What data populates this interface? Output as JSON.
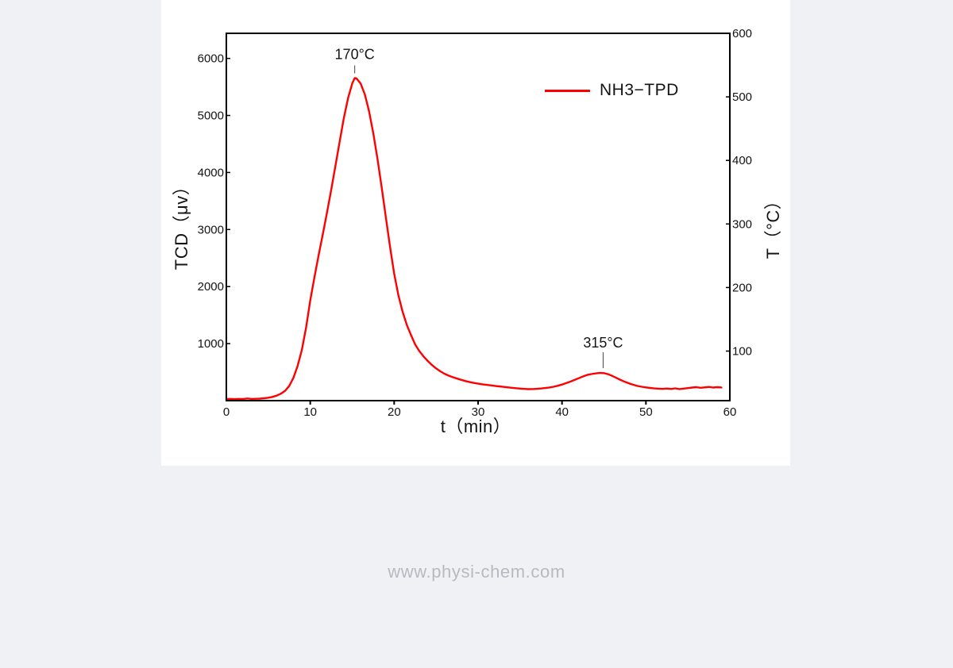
{
  "page": {
    "background": "#eff1f4",
    "panel_background": "#ffffff"
  },
  "watermark": {
    "text": "www.physi-chem.com",
    "color": "#b6bac1"
  },
  "chart_data": {
    "type": "line",
    "title": "",
    "xlabel": "t（min）",
    "ylabel_left": "TCD（μv）",
    "ylabel_right": "T（°C）",
    "xlim": [
      0,
      60
    ],
    "ylim_left": [
      0,
      6440
    ],
    "ylim_right": [
      22,
      600
    ],
    "x_ticks": [
      0,
      10,
      20,
      30,
      40,
      50,
      60
    ],
    "y_ticks_left": [
      1000,
      2000,
      3000,
      4000,
      5000,
      6000
    ],
    "y_ticks_right": [
      100,
      200,
      300,
      400,
      500,
      600
    ],
    "grid": false,
    "legend": {
      "label": "NH3−TPD",
      "color": "#ff0000",
      "position": "upper right"
    },
    "annotations": [
      {
        "text": "170°C",
        "t": 15.3,
        "peak_tcd": 5655
      },
      {
        "text": "315°C",
        "t": 44.9,
        "peak_tcd": 486
      }
    ],
    "series": [
      {
        "name": "NH3−TPD",
        "color": "#ff0000",
        "x": [
          0,
          0.5,
          1,
          1.5,
          2,
          2.5,
          3,
          3.5,
          4,
          4.5,
          5,
          5.5,
          6,
          6.5,
          7,
          7.5,
          8,
          8.5,
          9,
          9.5,
          10,
          10.5,
          11,
          11.5,
          12,
          12.5,
          13,
          13.5,
          14,
          14.5,
          15,
          15.3,
          15.5,
          16,
          16.5,
          17,
          17.5,
          18,
          18.5,
          19,
          19.5,
          20,
          20.5,
          21,
          21.5,
          22,
          22.5,
          23,
          23.5,
          24,
          24.5,
          25,
          25.5,
          26,
          26.5,
          27,
          27.5,
          28,
          28.5,
          29,
          29.5,
          30,
          30.5,
          31,
          31.5,
          32,
          32.5,
          33,
          33.5,
          34,
          34.5,
          35,
          35.5,
          36,
          36.5,
          37,
          37.5,
          38,
          38.5,
          39,
          39.5,
          40,
          40.5,
          41,
          41.5,
          42,
          42.5,
          43,
          43.5,
          44,
          44.5,
          45,
          45.5,
          46,
          46.5,
          47,
          47.5,
          48,
          48.5,
          49,
          49.5,
          50,
          50.5,
          51,
          51.5,
          52,
          52.5,
          53,
          53.5,
          54,
          54.5,
          55,
          55.5,
          56,
          56.5,
          57,
          57.5,
          58,
          58.5,
          59
        ],
        "y": [
          28,
          30,
          27,
          31,
          29,
          38,
          30,
          32,
          35,
          42,
          52,
          66,
          88,
          122,
          172,
          260,
          400,
          610,
          890,
          1280,
          1760,
          2160,
          2550,
          2920,
          3300,
          3700,
          4120,
          4540,
          4950,
          5300,
          5560,
          5655,
          5650,
          5560,
          5370,
          5080,
          4700,
          4250,
          3750,
          3220,
          2700,
          2230,
          1850,
          1560,
          1330,
          1150,
          985,
          870,
          775,
          695,
          625,
          565,
          515,
          472,
          438,
          410,
          386,
          364,
          344,
          326,
          310,
          297,
          286,
          277,
          268,
          259,
          250,
          242,
          234,
          226,
          218,
          211,
          206,
          202,
          203,
          207,
          213,
          221,
          231,
          244,
          261,
          282,
          307,
          334,
          363,
          394,
          424,
          450,
          466,
          477,
          486,
          482,
          463,
          432,
          398,
          362,
          330,
          302,
          278,
          258,
          243,
          232,
          222,
          214,
          210,
          206,
          213,
          204,
          216,
          203,
          212,
          220,
          230,
          237,
          226,
          232,
          240,
          229,
          237,
          231
        ]
      }
    ]
  }
}
